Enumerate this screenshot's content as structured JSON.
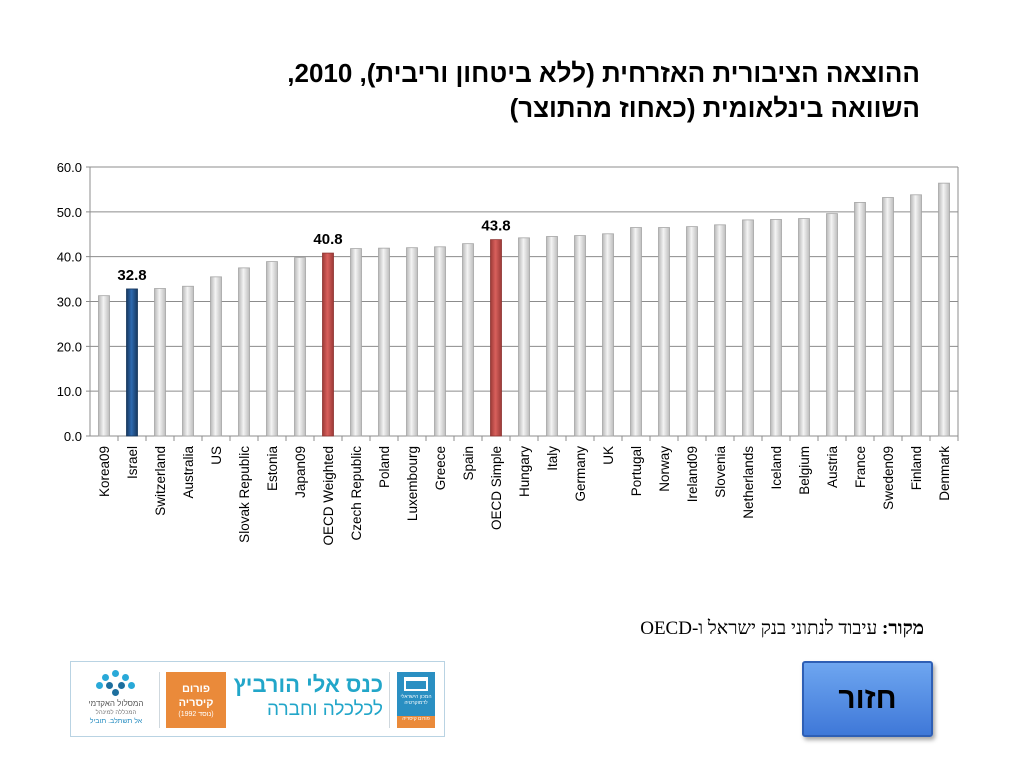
{
  "title": {
    "line1": "ההוצאה הציבורית האזרחית (ללא ביטחון וריבית), 2010,",
    "line2": "השוואה בינלאומית (כאחוז מהתוצר)"
  },
  "chart_data": {
    "type": "bar",
    "title": "",
    "xlabel": "",
    "ylabel": "",
    "ylim": [
      0,
      60
    ],
    "yticks": [
      "0.0",
      "10.0",
      "20.0",
      "30.0",
      "40.0",
      "50.0",
      "60.0"
    ],
    "grid": true,
    "categories": [
      "Korea09",
      "Israel",
      "Switzerland",
      "Australia",
      "US",
      "Slovak Republic",
      "Estonia",
      "Japan09",
      "OECD Weighted",
      "Czech Republic",
      "Poland",
      "Luxembourg",
      "Greece",
      "Spain",
      "OECD Simple",
      "Hungary",
      "Italy",
      "Germany",
      "UK",
      "Portugal",
      "Norway",
      "Ireland09",
      "Slovenia",
      "Netherlands",
      "Iceland",
      "Belgium",
      "Austria",
      "France",
      "Sweden09",
      "Finland",
      "Denmark"
    ],
    "values": [
      31.3,
      32.8,
      32.9,
      33.4,
      35.5,
      37.5,
      38.9,
      39.8,
      40.8,
      41.8,
      41.9,
      42.0,
      42.2,
      42.9,
      43.8,
      44.2,
      44.5,
      44.7,
      45.1,
      46.5,
      46.5,
      46.7,
      47.1,
      48.2,
      48.3,
      48.5,
      49.6,
      52.1,
      53.2,
      53.8,
      56.4
    ],
    "highlight": {
      "Israel": "#1f4e8a",
      "OECD Weighted": "#c0504d",
      "OECD Simple": "#c0504d"
    },
    "default_color": "#d9d9d9",
    "data_labels": [
      {
        "category": "Israel",
        "text": "32.8"
      },
      {
        "category": "OECD Weighted",
        "text": "40.8"
      },
      {
        "category": "OECD Simple",
        "text": "43.8"
      }
    ]
  },
  "source": {
    "label": "מקור:",
    "text": "עיבוד לנתוני בנק ישראל ו-OECD"
  },
  "logos": {
    "academic_name": "המסלול האקדמי",
    "academic_sub": "המכללה למינהל",
    "academic_tag": "אל תשתלב. תוביל",
    "forum_word": "פורום",
    "forum_name": "קיסריה",
    "forum_year": "(נוסד 1992)",
    "conference_title": "כנס אלי הורביץ",
    "conference_sub": "לכלכלה וחברה",
    "institute_name": "המכון הישראלי לדמוקרטיה",
    "institute_sub": "פורום קיסריה"
  },
  "back_button": {
    "label": "חזור"
  },
  "colors": {
    "accent": "#22a6c9",
    "button": "#4f87e3"
  }
}
